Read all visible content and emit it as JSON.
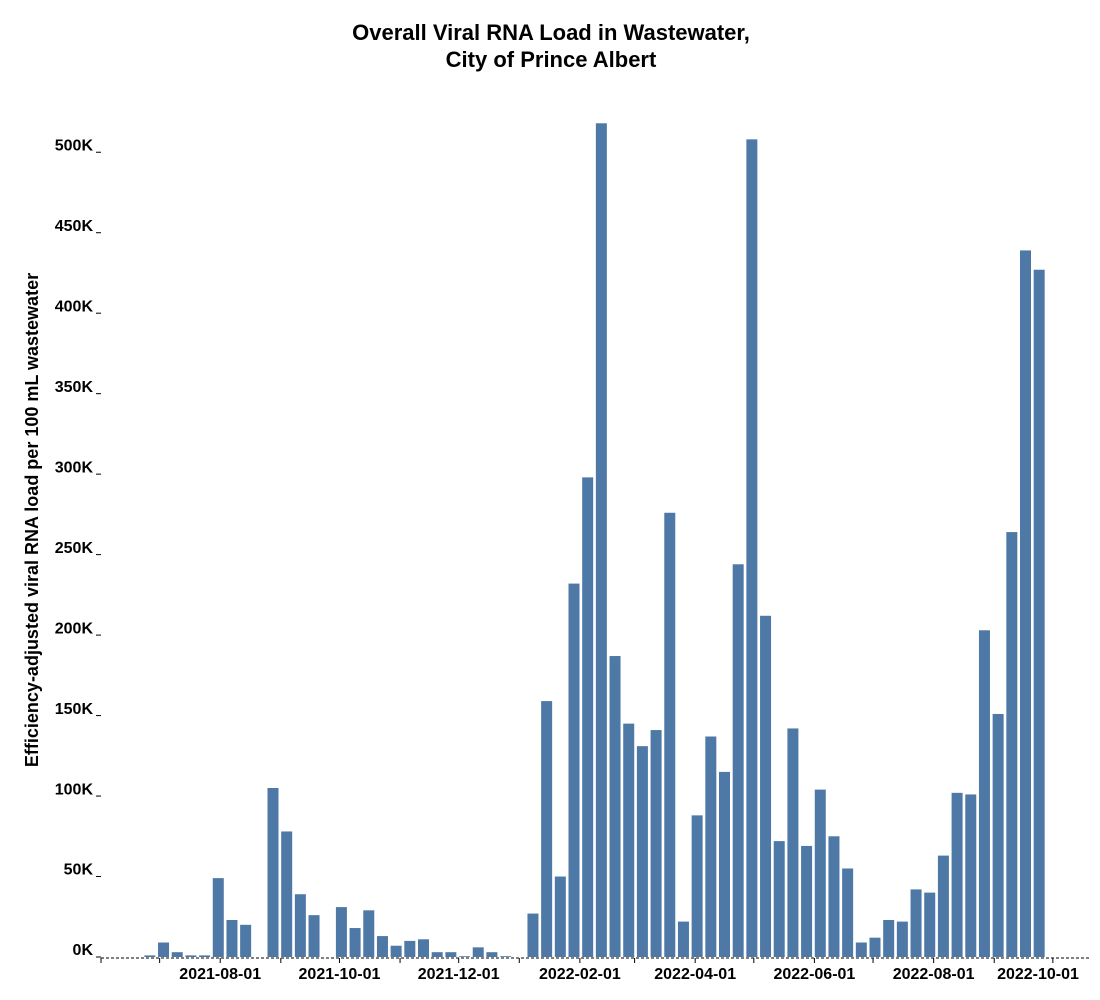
{
  "chart_data": {
    "type": "bar",
    "title_lines": [
      "Overall Viral RNA Load in Wastewater,",
      "City of Prince Albert"
    ],
    "ylabel": "Efficiency-adjusted viral RNA load per 100 mL wastewater",
    "color": "#4e79a7",
    "x": [
      "2021-06-26",
      "2021-07-03",
      "2021-07-10",
      "2021-07-17",
      "2021-07-24",
      "2021-07-31",
      "2021-08-07",
      "2021-08-14",
      "2021-08-28",
      "2021-09-04",
      "2021-09-11",
      "2021-09-18",
      "2021-10-02",
      "2021-10-09",
      "2021-10-16",
      "2021-10-23",
      "2021-10-30",
      "2021-11-06",
      "2021-11-13",
      "2021-11-20",
      "2021-11-27",
      "2021-12-04",
      "2021-12-11",
      "2021-12-18",
      "2021-12-25",
      "2022-01-08",
      "2022-01-15",
      "2022-01-22",
      "2022-01-29",
      "2022-02-05",
      "2022-02-12",
      "2022-02-19",
      "2022-02-26",
      "2022-03-05",
      "2022-03-12",
      "2022-03-19",
      "2022-03-26",
      "2022-04-02",
      "2022-04-09",
      "2022-04-16",
      "2022-04-23",
      "2022-04-30",
      "2022-05-07",
      "2022-05-14",
      "2022-05-21",
      "2022-05-28",
      "2022-06-04",
      "2022-06-11",
      "2022-06-18",
      "2022-06-25",
      "2022-07-02",
      "2022-07-09",
      "2022-07-16",
      "2022-07-23",
      "2022-07-30",
      "2022-08-06",
      "2022-08-13",
      "2022-08-20",
      "2022-08-27",
      "2022-09-03",
      "2022-09-10",
      "2022-09-17",
      "2022-09-24"
    ],
    "values": [
      1000,
      9000,
      3000,
      1000,
      1000,
      49000,
      23000,
      20000,
      105000,
      78000,
      39000,
      26000,
      31000,
      18000,
      29000,
      13000,
      7000,
      10000,
      11000,
      3000,
      3000,
      500,
      6000,
      3000,
      500,
      27000,
      159000,
      50000,
      232000,
      298000,
      518000,
      187000,
      145000,
      131000,
      141000,
      276000,
      22000,
      88000,
      137000,
      115000,
      244000,
      508000,
      212000,
      72000,
      142000,
      69000,
      104000,
      75000,
      55000,
      9000,
      12000,
      23000,
      22000,
      42000,
      40000,
      63000,
      102000,
      101000,
      203000,
      151000,
      264000,
      439000,
      427000
    ],
    "xlim": [
      "2021-06-01",
      "2022-10-20"
    ],
    "xticks": [
      "2021-08-01",
      "2021-10-01",
      "2021-12-01",
      "2022-02-01",
      "2022-04-01",
      "2022-06-01",
      "2022-08-01",
      "2022-10-01"
    ],
    "xminorticks": [
      "2021-06-01",
      "2021-07-01",
      "2021-08-01",
      "2021-09-01",
      "2021-10-01",
      "2021-11-01",
      "2021-12-01",
      "2022-01-01",
      "2022-02-01",
      "2022-03-01",
      "2022-04-01",
      "2022-05-01",
      "2022-06-01",
      "2022-07-01",
      "2022-08-01",
      "2022-09-01",
      "2022-10-01"
    ],
    "ylim": [
      0,
      525000
    ],
    "yticks": [
      {
        "value": 0,
        "label": "0K"
      },
      {
        "value": 50000,
        "label": "50K"
      },
      {
        "value": 100000,
        "label": "100K"
      },
      {
        "value": 150000,
        "label": "150K"
      },
      {
        "value": 200000,
        "label": "200K"
      },
      {
        "value": 250000,
        "label": "250K"
      },
      {
        "value": 300000,
        "label": "300K"
      },
      {
        "value": 350000,
        "label": "350K"
      },
      {
        "value": 400000,
        "label": "400K"
      },
      {
        "value": 450000,
        "label": "450K"
      },
      {
        "value": 500000,
        "label": "500K"
      }
    ]
  }
}
